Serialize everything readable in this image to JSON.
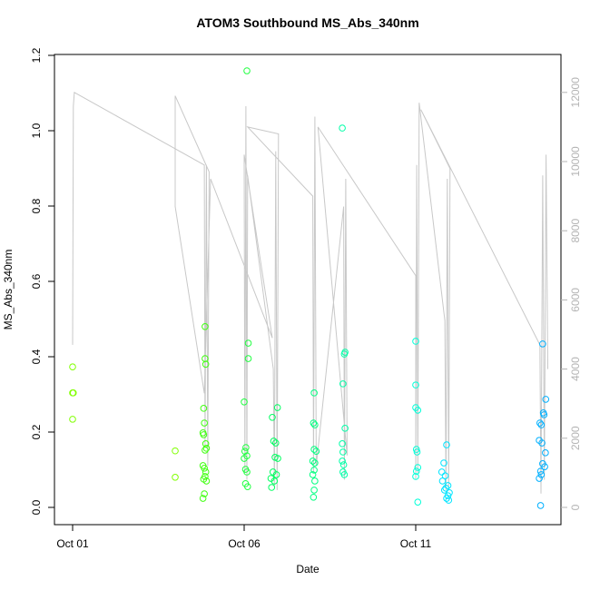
{
  "chart_data": {
    "type": "scatter",
    "title": "ATOM3 Southbound MS_Abs_340nm",
    "xlabel": "Date",
    "ylabel": "MS_Abs_340nm",
    "xlim": [
      0.471,
      15.233
    ],
    "xticks": [
      {
        "value": 1,
        "label": "Oct 01"
      },
      {
        "value": 6,
        "label": "Oct 06"
      },
      {
        "value": 11,
        "label": "Oct 11"
      }
    ],
    "ylim": [
      -0.0458,
      1.2024
    ],
    "yticks": [
      {
        "value": 0,
        "label": "0.0"
      },
      0.2,
      0.4,
      0.6,
      0.8,
      {
        "value": 1,
        "label": "1.0"
      },
      1.2
    ],
    "y2lim": [
      -499,
      13097
    ],
    "y2ticks": [
      0,
      2000,
      4000,
      6000,
      8000,
      10000,
      12000
    ],
    "y2color": "#b4b4b4",
    "line": {
      "color": "#c8c8c8",
      "axis": "y2",
      "x": [
        1.0,
        1.02,
        1.05,
        4.84,
        4.86,
        4.9,
        4.94,
        4.98,
        3.99,
        3.99,
        4.84,
        5.02,
        6.82,
        6.0,
        6.02,
        6.05,
        6.08,
        6.1,
        6.85,
        6.88,
        6.92,
        6.96,
        7.0,
        6.1,
        8.0,
        8.02,
        8.06,
        8.1,
        8.9,
        8.92,
        8.96,
        9.0,
        8.15,
        11.0,
        11.0,
        11.03,
        11.06,
        11.1,
        11.85,
        11.88,
        11.92,
        11.96,
        12.0,
        11.15,
        14.62,
        14.65,
        14.7,
        14.75,
        14.8,
        14.85
      ],
      "values": [
        4700,
        11600,
        12000,
        9900,
        1800,
        9900,
        1200,
        9700,
        11900,
        8700,
        3300,
        9500,
        4900,
        10200,
        1000,
        11600,
        800,
        9600,
        4000,
        600,
        10300,
        500,
        10800,
        11000,
        9000,
        1000,
        11300,
        1200,
        8700,
        800,
        9500,
        1500,
        11000,
        6700,
        800,
        9900,
        1000,
        11700,
        5400,
        500,
        9500,
        600,
        9800,
        11500,
        4700,
        400,
        9600,
        800,
        10200,
        4000
      ]
    },
    "series": [
      {
        "color": "#80ff00",
        "x": [
          1.0,
          1.0,
          1.02,
          1.0,
          3.99,
          3.99
        ],
        "values": [
          0.373,
          0.304,
          0.304,
          0.234,
          0.15,
          0.08
        ]
      },
      {
        "color": "#40ff10",
        "x": [
          4.86,
          4.86,
          4.88,
          4.82,
          4.84,
          4.82,
          4.8,
          4.88,
          4.9,
          4.86,
          4.8,
          4.84,
          4.88,
          4.86,
          4.82,
          4.9,
          4.84,
          4.8
        ],
        "values": [
          0.48,
          0.395,
          0.38,
          0.263,
          0.224,
          0.193,
          0.198,
          0.169,
          0.157,
          0.152,
          0.111,
          0.104,
          0.094,
          0.082,
          0.075,
          0.07,
          0.036,
          0.024
        ]
      },
      {
        "color": "#20ff40",
        "x": [
          6.08,
          6.12,
          6.12,
          6.0,
          6.05,
          6.02,
          6.08,
          6.0,
          6.04,
          6.08,
          6.04,
          6.1
        ],
        "values": [
          1.159,
          0.436,
          0.395,
          0.28,
          0.159,
          0.149,
          0.137,
          0.13,
          0.101,
          0.094,
          0.063,
          0.055
        ]
      },
      {
        "color": "#00ff60",
        "x": [
          6.97,
          6.82,
          6.86,
          6.92,
          6.9,
          6.98,
          6.84,
          6.94,
          6.78,
          6.88,
          6.8
        ],
        "values": [
          0.265,
          0.239,
          0.176,
          0.171,
          0.133,
          0.13,
          0.094,
          0.087,
          0.077,
          0.07,
          0.053
        ]
      },
      {
        "color": "#00ff80",
        "x": [
          8.04,
          8.02,
          8.06,
          8.04,
          8.1,
          8.0,
          8.06,
          8.04,
          8.0,
          8.06,
          8.04,
          8.02
        ],
        "values": [
          0.304,
          0.224,
          0.219,
          0.154,
          0.149,
          0.123,
          0.118,
          0.099,
          0.087,
          0.07,
          0.046,
          0.027
        ]
      },
      {
        "color": "#00ffa8",
        "x": [
          8.86,
          8.94,
          8.92,
          8.88,
          8.94,
          8.86,
          8.88,
          8.86,
          8.9,
          8.88,
          8.92
        ],
        "values": [
          1.007,
          0.412,
          0.407,
          0.328,
          0.21,
          0.169,
          0.147,
          0.123,
          0.113,
          0.094,
          0.087
        ]
      },
      {
        "color": "#00ffd8",
        "x": [
          11.0,
          11.0,
          11.0,
          11.06,
          11.02,
          11.04,
          11.06,
          11.02,
          11.0,
          11.06
        ],
        "values": [
          0.441,
          0.325,
          0.265,
          0.258,
          0.154,
          0.147,
          0.106,
          0.096,
          0.082,
          0.014
        ]
      },
      {
        "color": "#00e4ff",
        "x": [
          11.9,
          11.82,
          11.76,
          11.86,
          11.78,
          11.94,
          11.88,
          11.84,
          11.98,
          11.94,
          11.9,
          11.96
        ],
        "values": [
          0.166,
          0.118,
          0.094,
          0.084,
          0.07,
          0.058,
          0.051,
          0.046,
          0.039,
          0.031,
          0.024,
          0.019
        ]
      },
      {
        "color": "#00b0ff",
        "x": [
          14.7,
          14.79,
          14.72,
          14.74,
          14.62,
          14.66,
          14.6,
          14.68,
          14.78,
          14.7,
          14.76,
          14.64,
          14.66,
          14.6,
          14.64
        ],
        "values": [
          0.434,
          0.287,
          0.251,
          0.246,
          0.224,
          0.219,
          0.178,
          0.171,
          0.145,
          0.116,
          0.108,
          0.096,
          0.087,
          0.077,
          0.005
        ]
      }
    ]
  }
}
